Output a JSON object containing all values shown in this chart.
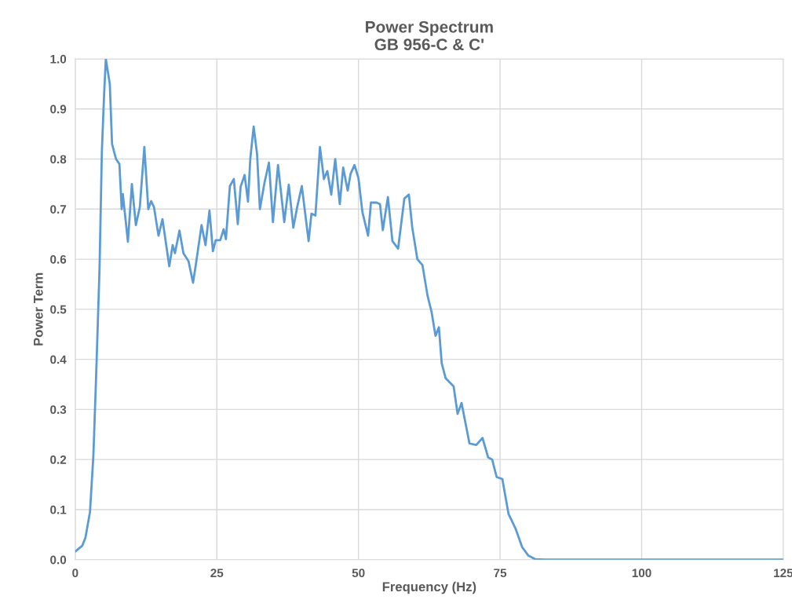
{
  "chart_data": {
    "type": "line",
    "title": "Power Spectrum\nGB 956-C & C'",
    "xlabel": "Frequency (Hz)",
    "ylabel": "Power Term",
    "xlim": [
      0,
      125
    ],
    "xticks": [
      0,
      25,
      50,
      75,
      100,
      125
    ],
    "ylim": [
      0,
      1.0
    ],
    "yticks": [
      {
        "value": 0,
        "label": "0.0"
      },
      {
        "value": 0.1,
        "label": "0.1"
      },
      {
        "value": 0.2,
        "label": "0.2"
      },
      {
        "value": 0.3,
        "label": "0.3"
      },
      {
        "value": 0.4,
        "label": "0.4"
      },
      {
        "value": 0.5,
        "label": "0.5"
      },
      {
        "value": 0.6,
        "label": "0.6"
      },
      {
        "value": 0.7,
        "label": "0.7"
      },
      {
        "value": 0.8,
        "label": "0.8"
      },
      {
        "value": 0.9,
        "label": "0.9"
      },
      {
        "value": 1.0,
        "label": "1.0"
      }
    ],
    "grid": true,
    "legend": false,
    "series": [
      {
        "color": "#5b9bd5",
        "x": [
          0.1,
          1.25,
          1.8,
          2.6,
          3.2,
          3.7,
          4.3,
          4.7,
          5.1,
          5.4,
          6.1,
          6.5,
          7.2,
          7.8,
          8.2,
          8.4,
          9.3,
          10.0,
          10.7,
          11.4,
          12.2,
          12.9,
          13.4,
          13.9,
          14.7,
          15.4,
          16.6,
          17.2,
          17.6,
          18.4,
          19.1,
          20.0,
          20.8,
          21.3,
          22.3,
          23.0,
          23.7,
          24.3,
          24.8,
          25.6,
          26.2,
          26.6,
          27.3,
          28.0,
          28.7,
          29.2,
          29.9,
          30.5,
          30.9,
          31.5,
          32.1,
          32.6,
          33.4,
          34.2,
          34.9,
          35.8,
          36.9,
          37.7,
          38.5,
          39.2,
          40.0,
          41.2,
          41.7,
          42.4,
          43.2,
          43.9,
          44.5,
          45.2,
          45.9,
          46.7,
          47.3,
          48.1,
          48.6,
          49.3,
          50.0,
          50.7,
          51.7,
          52.2,
          53.2,
          53.8,
          54.3,
          55.2,
          56.0,
          57.0,
          58.1,
          58.9,
          59.5,
          60.4,
          61.3,
          62.2,
          62.9,
          63.6,
          64.2,
          64.7,
          65.4,
          66.8,
          67.5,
          68.2,
          69.6,
          70.8,
          71.9,
          72.9,
          73.6,
          74.4,
          75.4,
          76.5,
          77.7,
          78.9,
          80.0,
          81.2,
          83.0,
          125.0
        ],
        "values": [
          0.017,
          0.028,
          0.044,
          0.095,
          0.207,
          0.37,
          0.586,
          0.815,
          0.93,
          1.0,
          0.95,
          0.83,
          0.8,
          0.79,
          0.7,
          0.73,
          0.635,
          0.75,
          0.668,
          0.704,
          0.824,
          0.7,
          0.716,
          0.704,
          0.647,
          0.68,
          0.586,
          0.628,
          0.612,
          0.657,
          0.612,
          0.596,
          0.553,
          0.59,
          0.668,
          0.628,
          0.697,
          0.616,
          0.638,
          0.638,
          0.66,
          0.64,
          0.746,
          0.76,
          0.67,
          0.745,
          0.768,
          0.715,
          0.8,
          0.865,
          0.81,
          0.7,
          0.752,
          0.793,
          0.674,
          0.788,
          0.674,
          0.749,
          0.663,
          0.705,
          0.746,
          0.636,
          0.691,
          0.687,
          0.824,
          0.76,
          0.776,
          0.729,
          0.8,
          0.71,
          0.783,
          0.737,
          0.77,
          0.788,
          0.762,
          0.694,
          0.647,
          0.713,
          0.713,
          0.71,
          0.658,
          0.724,
          0.636,
          0.621,
          0.721,
          0.729,
          0.663,
          0.6,
          0.588,
          0.527,
          0.495,
          0.447,
          0.464,
          0.392,
          0.362,
          0.346,
          0.291,
          0.313,
          0.232,
          0.229,
          0.243,
          0.204,
          0.2,
          0.165,
          0.161,
          0.091,
          0.063,
          0.025,
          0.008,
          0.001,
          0,
          0
        ]
      }
    ]
  }
}
